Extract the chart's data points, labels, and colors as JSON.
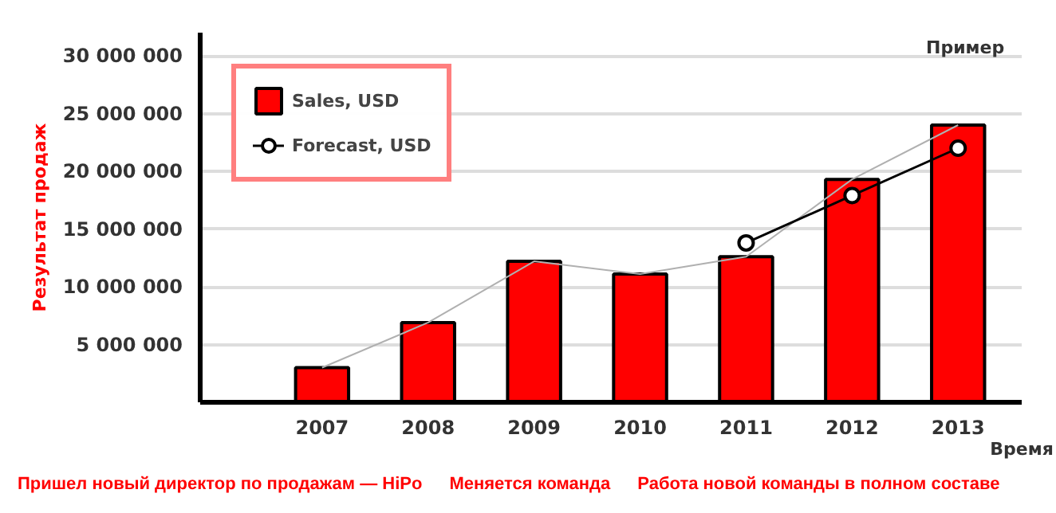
{
  "chart_data": {
    "type": "bar",
    "ylabel": "Результат продаж",
    "xlabel": "Время",
    "categories": [
      "2007",
      "2008",
      "2009",
      "2010",
      "2011",
      "2012",
      "2013"
    ],
    "series": [
      {
        "name": "Sales, USD",
        "color": "#ff0000",
        "values": [
          3000000,
          6900000,
          12200000,
          11100000,
          12600000,
          19300000,
          24000000
        ]
      },
      {
        "type": "line",
        "color": "#b0b0b0",
        "marker": "none",
        "values": [
          3000000,
          6900000,
          12200000,
          11100000,
          12600000,
          19300000,
          24000000
        ]
      },
      {
        "name": "Forecast, USD",
        "type": "line",
        "color": "#000000",
        "marker": "circle",
        "values": [
          null,
          null,
          null,
          null,
          13800000,
          17900000,
          22000000
        ]
      }
    ],
    "ylim": [
      0,
      32000000
    ],
    "yticks": [
      {
        "value": 5000000,
        "label": "5 000 000"
      },
      {
        "value": 10000000,
        "label": "10 000 000"
      },
      {
        "value": 15000000,
        "label": "15 000 000"
      },
      {
        "value": 20000000,
        "label": "20 000 000"
      },
      {
        "value": 25000000,
        "label": "25 000 000"
      },
      {
        "value": 30000000,
        "label": "30 000 000"
      }
    ],
    "grid": "y",
    "legend": "top left",
    "annotations": [
      "Пример",
      "Пришел новый директор по продажам — HiPo",
      "Меняется команда",
      "Работа новой команды в полном составе"
    ]
  }
}
